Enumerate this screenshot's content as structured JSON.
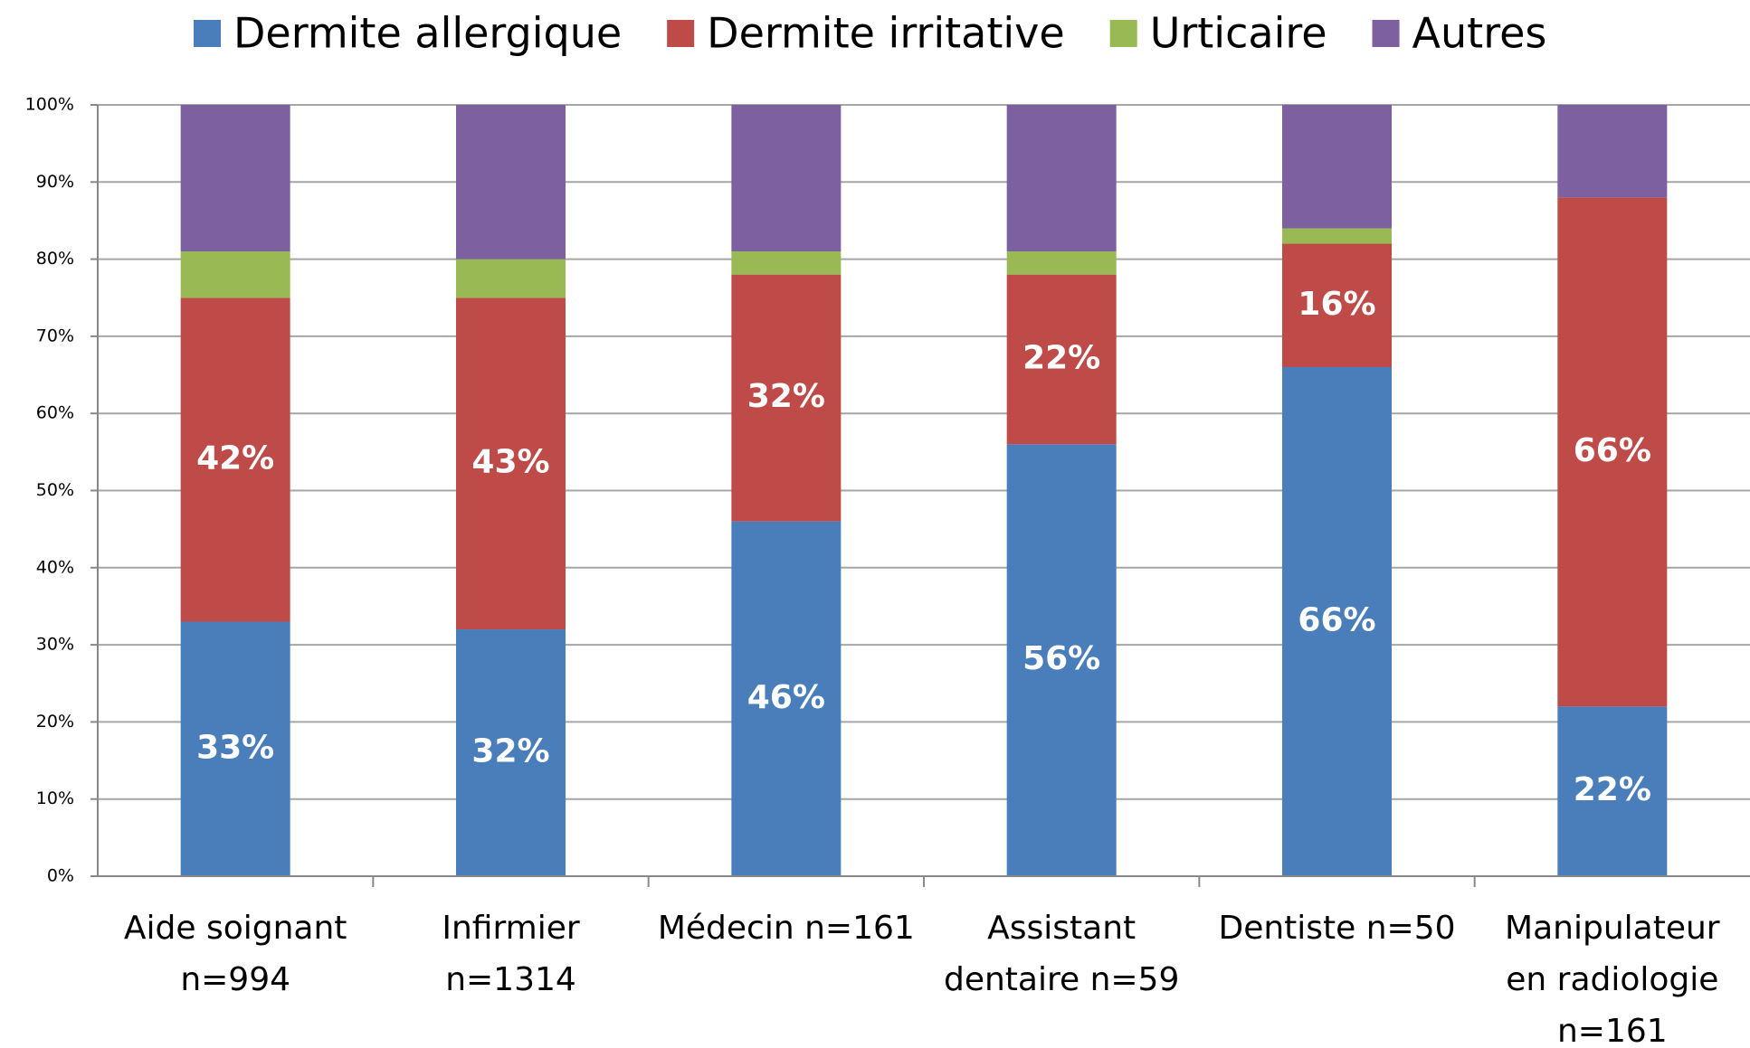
{
  "chart_data": {
    "type": "stacked_bar",
    "categories": [
      "Aide soignant\nn=994",
      "Infirmier\nn=1314",
      "Médecin n=161",
      "Assistant\ndentaire n=59",
      "Dentiste n=50",
      "Manipulateur\nen radiologie\nn=161"
    ],
    "series": [
      {
        "name": "Dermite allergique",
        "color": "#4a7ebb",
        "values": [
          33,
          32,
          46,
          56,
          66,
          22
        ],
        "value_labels": [
          "33%",
          "32%",
          "46%",
          "56%",
          "66%",
          "22%"
        ]
      },
      {
        "name": "Dermite irritative",
        "color": "#be4b48",
        "values": [
          42,
          43,
          32,
          22,
          16,
          66
        ],
        "value_labels": [
          "42%",
          "43%",
          "32%",
          "22%",
          "16%",
          "66%"
        ]
      },
      {
        "name": "Urticaire",
        "color": "#98b954",
        "values": [
          6,
          5,
          3,
          3,
          2,
          0
        ]
      },
      {
        "name": "Autres",
        "color": "#7d60a0",
        "values": [
          19,
          20,
          19,
          19,
          16,
          12
        ]
      }
    ],
    "ylim": [
      0,
      100
    ],
    "yticks": [
      {
        "value": 0,
        "label": "0%"
      },
      {
        "value": 10,
        "label": "10%"
      },
      {
        "value": 20,
        "label": "20%"
      },
      {
        "value": 30,
        "label": "30%"
      },
      {
        "value": 40,
        "label": "40%"
      },
      {
        "value": 50,
        "label": "50%"
      },
      {
        "value": 60,
        "label": "60%"
      },
      {
        "value": 70,
        "label": "70%"
      },
      {
        "value": 80,
        "label": "80%"
      },
      {
        "value": 90,
        "label": "90%"
      },
      {
        "value": 100,
        "label": "100%"
      }
    ],
    "grid": true,
    "legend": "top"
  }
}
